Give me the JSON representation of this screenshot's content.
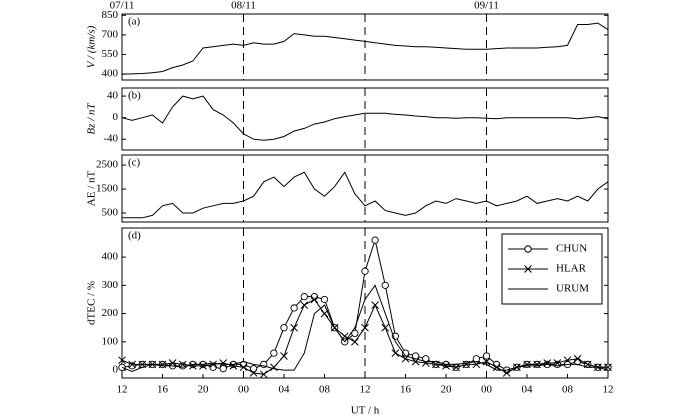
{
  "chart_data": [
    {
      "type": "line",
      "panel_label": "(a)",
      "y_label": "V / (km/s)",
      "color": "#000000",
      "date_labels": [
        {
          "value": 12,
          "label": "07/11"
        },
        {
          "value": 24,
          "label": "08/11"
        },
        {
          "value": 48,
          "label": "09/11"
        }
      ],
      "vlines": [
        24,
        36,
        48
      ],
      "xlim": [
        12,
        60
      ],
      "ylim": [
        355,
        860
      ],
      "yticks": [
        400,
        550,
        700,
        850
      ],
      "x": [
        12,
        13,
        14,
        15,
        16,
        17,
        18,
        19,
        20,
        21,
        22,
        23,
        24,
        25,
        26,
        27,
        28,
        29,
        30,
        31,
        32,
        33,
        34,
        35,
        36,
        37,
        38,
        39,
        40,
        41,
        42,
        43,
        44,
        45,
        46,
        47,
        48,
        49,
        50,
        51,
        52,
        53,
        54,
        55,
        56,
        57,
        58,
        59,
        60
      ],
      "values": [
        400,
        402,
        405,
        410,
        420,
        450,
        470,
        500,
        600,
        610,
        620,
        630,
        620,
        640,
        630,
        630,
        650,
        710,
        700,
        690,
        690,
        680,
        670,
        660,
        650,
        640,
        630,
        620,
        615,
        610,
        610,
        605,
        600,
        595,
        590,
        590,
        590,
        595,
        600,
        600,
        600,
        600,
        605,
        610,
        620,
        780,
        780,
        790,
        740
      ]
    },
    {
      "type": "line",
      "panel_label": "(b)",
      "y_label": "Bz / nT",
      "color": "#000000",
      "vlines": [
        24,
        36,
        48
      ],
      "xlim": [
        12,
        60
      ],
      "ylim": [
        -60,
        55
      ],
      "yticks": [
        -40,
        0,
        40
      ],
      "x": [
        12,
        13,
        14,
        15,
        16,
        17,
        18,
        19,
        20,
        21,
        22,
        23,
        24,
        25,
        26,
        27,
        28,
        29,
        30,
        31,
        32,
        33,
        34,
        35,
        36,
        37,
        38,
        39,
        40,
        41,
        42,
        43,
        44,
        45,
        46,
        47,
        48,
        49,
        50,
        51,
        52,
        53,
        54,
        55,
        56,
        57,
        58,
        59,
        60
      ],
      "values": [
        0,
        -5,
        0,
        5,
        -10,
        20,
        40,
        35,
        40,
        15,
        5,
        -10,
        -30,
        -40,
        -42,
        -40,
        -35,
        -25,
        -20,
        -12,
        -8,
        -2,
        2,
        5,
        8,
        8,
        8,
        6,
        5,
        3,
        2,
        0,
        0,
        -1,
        0,
        0,
        -1,
        -2,
        0,
        0,
        0,
        0,
        0,
        0,
        0,
        -2,
        0,
        2,
        -2
      ]
    },
    {
      "type": "line",
      "panel_label": "(c)",
      "y_label": "AE / nT",
      "color": "#000000",
      "vlines": [
        24,
        36,
        48
      ],
      "xlim": [
        12,
        60
      ],
      "ylim": [
        125,
        2920
      ],
      "yticks": [
        500,
        1500,
        2500
      ],
      "x": [
        12,
        13,
        14,
        15,
        16,
        17,
        18,
        19,
        20,
        21,
        22,
        23,
        24,
        25,
        26,
        27,
        28,
        29,
        30,
        31,
        32,
        33,
        34,
        35,
        36,
        37,
        38,
        39,
        40,
        41,
        42,
        43,
        44,
        45,
        46,
        47,
        48,
        49,
        50,
        51,
        52,
        53,
        54,
        55,
        56,
        57,
        58,
        59,
        60
      ],
      "values": [
        300,
        300,
        300,
        400,
        800,
        900,
        500,
        500,
        700,
        800,
        900,
        900,
        1000,
        1200,
        1800,
        2000,
        1600,
        2000,
        2200,
        1500,
        1200,
        1600,
        2200,
        1300,
        800,
        1000,
        600,
        500,
        400,
        500,
        800,
        1000,
        900,
        1100,
        1000,
        900,
        1000,
        800,
        900,
        1000,
        1200,
        900,
        1000,
        1100,
        1000,
        1200,
        1000,
        1500,
        1800
      ]
    },
    {
      "type": "line",
      "panel_label": "(d)",
      "y_label": "dTEC / %",
      "x_label": "UT / h",
      "legend": "upper right",
      "vlines": [
        24,
        36,
        48
      ],
      "xlim": [
        12,
        60
      ],
      "ylim": [
        -28,
        503
      ],
      "yticks": [
        0,
        100,
        200,
        300,
        400
      ],
      "xticks": [
        12,
        16,
        20,
        {
          "value": 24,
          "label": "00"
        },
        {
          "value": 28,
          "label": "04"
        },
        {
          "value": 32,
          "label": "08"
        },
        {
          "value": 36,
          "label": "12"
        },
        {
          "value": 40,
          "label": "16"
        },
        {
          "value": 44,
          "label": "20"
        },
        {
          "value": 48,
          "label": "00"
        },
        {
          "value": 52,
          "label": "04"
        },
        {
          "value": 56,
          "label": "08"
        },
        {
          "value": 60,
          "label": "12"
        }
      ],
      "x": [
        12,
        13,
        14,
        15,
        16,
        17,
        18,
        19,
        20,
        21,
        22,
        23,
        24,
        25,
        26,
        27,
        28,
        29,
        30,
        31,
        32,
        33,
        34,
        35,
        36,
        37,
        38,
        39,
        40,
        41,
        42,
        43,
        44,
        45,
        46,
        47,
        48,
        49,
        50,
        51,
        52,
        53,
        54,
        55,
        56,
        57,
        58,
        59,
        60
      ],
      "series": [
        {
          "name": "CHUN",
          "color": "#000000",
          "marker": "circle",
          "values": [
            10,
            15,
            20,
            20,
            20,
            15,
            15,
            20,
            20,
            10,
            5,
            20,
            20,
            5,
            20,
            60,
            150,
            220,
            260,
            260,
            250,
            150,
            100,
            130,
            350,
            460,
            300,
            120,
            60,
            50,
            40,
            20,
            20,
            10,
            20,
            40,
            50,
            20,
            0,
            10,
            20,
            20,
            20,
            20,
            20,
            30,
            20,
            10,
            10
          ]
        },
        {
          "name": "HLAR",
          "color": "#000000",
          "marker": "x",
          "values": [
            35,
            20,
            20,
            20,
            20,
            25,
            20,
            15,
            15,
            20,
            25,
            15,
            10,
            -10,
            -15,
            10,
            50,
            150,
            230,
            250,
            200,
            150,
            120,
            100,
            150,
            230,
            150,
            60,
            40,
            30,
            25,
            20,
            15,
            10,
            20,
            20,
            30,
            10,
            -10,
            10,
            20,
            20,
            25,
            25,
            35,
            40,
            20,
            10,
            10
          ]
        },
        {
          "name": "URUM",
          "color": "#000000",
          "marker": "none",
          "values": [
            10,
            -5,
            10,
            20,
            15,
            15,
            10,
            20,
            20,
            25,
            20,
            20,
            30,
            20,
            15,
            5,
            0,
            0,
            60,
            200,
            230,
            150,
            100,
            150,
            250,
            300,
            200,
            100,
            50,
            40,
            30,
            30,
            20,
            20,
            25,
            30,
            20,
            0,
            0,
            10,
            15,
            15,
            20,
            15,
            20,
            20,
            10,
            10,
            0
          ]
        }
      ]
    }
  ]
}
